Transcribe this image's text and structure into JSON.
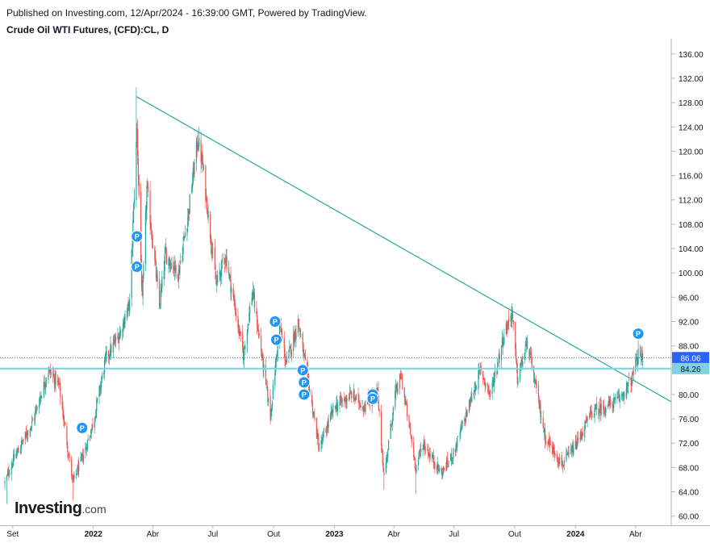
{
  "header": {
    "published": "Published on Investing.com, 12/Apr/2024 - 16:39:00 GMT, Powered by TradingView.",
    "title": "Crude Oil WTI Futures, (CFD):CL, D"
  },
  "logo": {
    "main": "Investing",
    "suffix": ".com"
  },
  "chart_data": {
    "type": "candlestick",
    "title": "Crude Oil WTI Futures, (CFD):CL, D",
    "y_axis": {
      "side": "right",
      "ylim": [
        58.5,
        138.5
      ],
      "ticks": [
        "60.00",
        "64.00",
        "68.00",
        "72.00",
        "76.00",
        "80.00",
        "84.00",
        "88.00",
        "92.00",
        "96.00",
        "100.00",
        "104.00",
        "108.00",
        "112.00",
        "116.00",
        "120.00",
        "124.00",
        "128.00",
        "132.00",
        "136.00"
      ]
    },
    "x_axis": {
      "range": [
        "2021-08-20",
        "2024-05-25"
      ],
      "ticks": [
        {
          "label": "Set",
          "date": "2021-09-01",
          "bold": false
        },
        {
          "label": "2022",
          "date": "2022-01-01",
          "bold": true
        },
        {
          "label": "Abr",
          "date": "2022-04-01",
          "bold": false
        },
        {
          "label": "Jul",
          "date": "2022-07-01",
          "bold": false
        },
        {
          "label": "Out",
          "date": "2022-10-01",
          "bold": false
        },
        {
          "label": "2023",
          "date": "2023-01-01",
          "bold": true
        },
        {
          "label": "Abr",
          "date": "2023-04-01",
          "bold": false
        },
        {
          "label": "Jul",
          "date": "2023-07-01",
          "bold": false
        },
        {
          "label": "Out",
          "date": "2023-10-01",
          "bold": false
        },
        {
          "label": "2024",
          "date": "2024-01-01",
          "bold": true
        },
        {
          "label": "Abr",
          "date": "2024-04-01",
          "bold": false
        }
      ]
    },
    "price_path": [
      [
        "2021-08-20",
        65.5
      ],
      [
        "2021-09-01",
        69
      ],
      [
        "2021-10-01",
        75.5
      ],
      [
        "2021-10-25",
        84
      ],
      [
        "2021-11-10",
        81.5
      ],
      [
        "2021-11-26",
        69
      ],
      [
        "2021-12-01",
        65.5
      ],
      [
        "2021-12-20",
        71
      ],
      [
        "2022-01-01",
        75.5
      ],
      [
        "2022-01-20",
        86
      ],
      [
        "2022-02-10",
        90
      ],
      [
        "2022-02-25",
        95
      ],
      [
        "2022-03-08",
        123.5
      ],
      [
        "2022-03-16",
        95
      ],
      [
        "2022-03-23",
        114
      ],
      [
        "2022-04-11",
        94.5
      ],
      [
        "2022-04-20",
        103
      ],
      [
        "2022-05-10",
        100
      ],
      [
        "2022-05-25",
        110
      ],
      [
        "2022-06-08",
        122
      ],
      [
        "2022-06-15",
        118
      ],
      [
        "2022-07-06",
        98
      ],
      [
        "2022-07-20",
        103
      ],
      [
        "2022-08-16",
        86.5
      ],
      [
        "2022-08-30",
        97
      ],
      [
        "2022-09-26",
        76.5
      ],
      [
        "2022-10-10",
        91.5
      ],
      [
        "2022-10-20",
        85
      ],
      [
        "2022-11-07",
        92
      ],
      [
        "2022-12-09",
        71
      ],
      [
        "2023-01-01",
        78
      ],
      [
        "2023-01-27",
        80
      ],
      [
        "2023-02-15",
        78
      ],
      [
        "2023-03-07",
        80.5
      ],
      [
        "2023-03-17",
        66.5
      ],
      [
        "2023-04-03",
        80
      ],
      [
        "2023-04-12",
        83
      ],
      [
        "2023-05-04",
        68
      ],
      [
        "2023-05-15",
        72
      ],
      [
        "2023-06-12",
        67
      ],
      [
        "2023-07-01",
        70.5
      ],
      [
        "2023-08-10",
        84
      ],
      [
        "2023-08-25",
        80
      ],
      [
        "2023-09-15",
        90
      ],
      [
        "2023-09-27",
        93.5
      ],
      [
        "2023-10-05",
        82.5
      ],
      [
        "2023-10-20",
        88.5
      ],
      [
        "2023-11-16",
        73
      ],
      [
        "2023-12-12",
        68.5
      ],
      [
        "2024-01-01",
        71.5
      ],
      [
        "2024-01-25",
        77
      ],
      [
        "2024-02-15",
        78
      ],
      [
        "2024-03-05",
        79
      ],
      [
        "2024-03-25",
        82
      ],
      [
        "2024-04-05",
        86.5
      ],
      [
        "2024-04-12",
        86.06
      ]
    ],
    "extremes": [
      {
        "date": "2021-08-23",
        "low": 62
      },
      {
        "date": "2021-12-01",
        "low": 62.5
      },
      {
        "date": "2022-03-07",
        "high": 130.5
      },
      {
        "date": "2022-06-08",
        "high": 123.3
      },
      {
        "date": "2022-09-26",
        "low": 76.3
      },
      {
        "date": "2023-03-17",
        "low": 64.3
      },
      {
        "date": "2023-05-04",
        "low": 63.6
      },
      {
        "date": "2023-09-27",
        "high": 95.0
      },
      {
        "date": "2023-12-12",
        "low": 67.7
      }
    ],
    "trendline": {
      "start": {
        "date": "2022-03-07",
        "value": 129
      },
      "end": {
        "date": "2024-05-25",
        "value": 78.8
      },
      "color": "#26a69a"
    },
    "support_line": {
      "value": 84.26,
      "color": "#7fd3df"
    },
    "last_price": {
      "value": 86.06,
      "label": "86.06",
      "color": "#2962ff"
    },
    "support_label": {
      "value": 84.26,
      "label": "84.26",
      "color": "#7fd3df"
    },
    "markers": {
      "label": "P",
      "color": "#2196f3",
      "points": [
        {
          "date": "2021-12-15",
          "value": 74.5
        },
        {
          "date": "2022-03-08",
          "value": 106
        },
        {
          "date": "2022-03-08",
          "value": 101
        },
        {
          "date": "2022-10-03",
          "value": 92
        },
        {
          "date": "2022-10-05",
          "value": 89
        },
        {
          "date": "2022-11-14",
          "value": 84
        },
        {
          "date": "2022-11-16",
          "value": 82
        },
        {
          "date": "2022-11-16",
          "value": 80
        },
        {
          "date": "2023-02-28",
          "value": 80
        },
        {
          "date": "2023-02-28",
          "value": 79.3
        },
        {
          "date": "2024-04-05",
          "value": 90
        }
      ]
    },
    "colors": {
      "up": "#26a69a",
      "down": "#ef5350",
      "axis": "#b2b5be",
      "text": "#131722"
    }
  }
}
